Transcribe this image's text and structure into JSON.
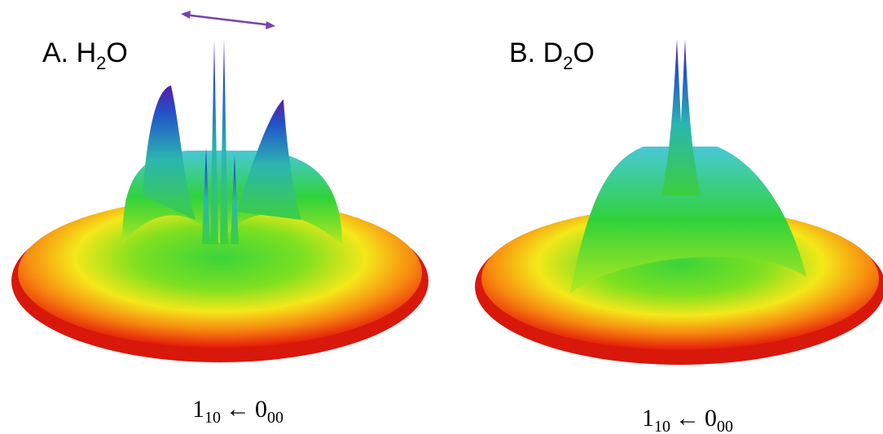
{
  "panels": [
    {
      "label": {
        "main": "A. H",
        "sub": "2",
        "end": "O"
      },
      "transition": {
        "upper": "1",
        "upper_sub": "10",
        "arrow": "←",
        "lower": "0",
        "lower_sub": "00"
      }
    },
    {
      "label": {
        "main": "B. D",
        "sub": "2",
        "end": "O"
      },
      "transition": {
        "upper": "1",
        "upper_sub": "10",
        "arrow": "←",
        "lower": "0",
        "lower_sub": "00"
      }
    }
  ]
}
